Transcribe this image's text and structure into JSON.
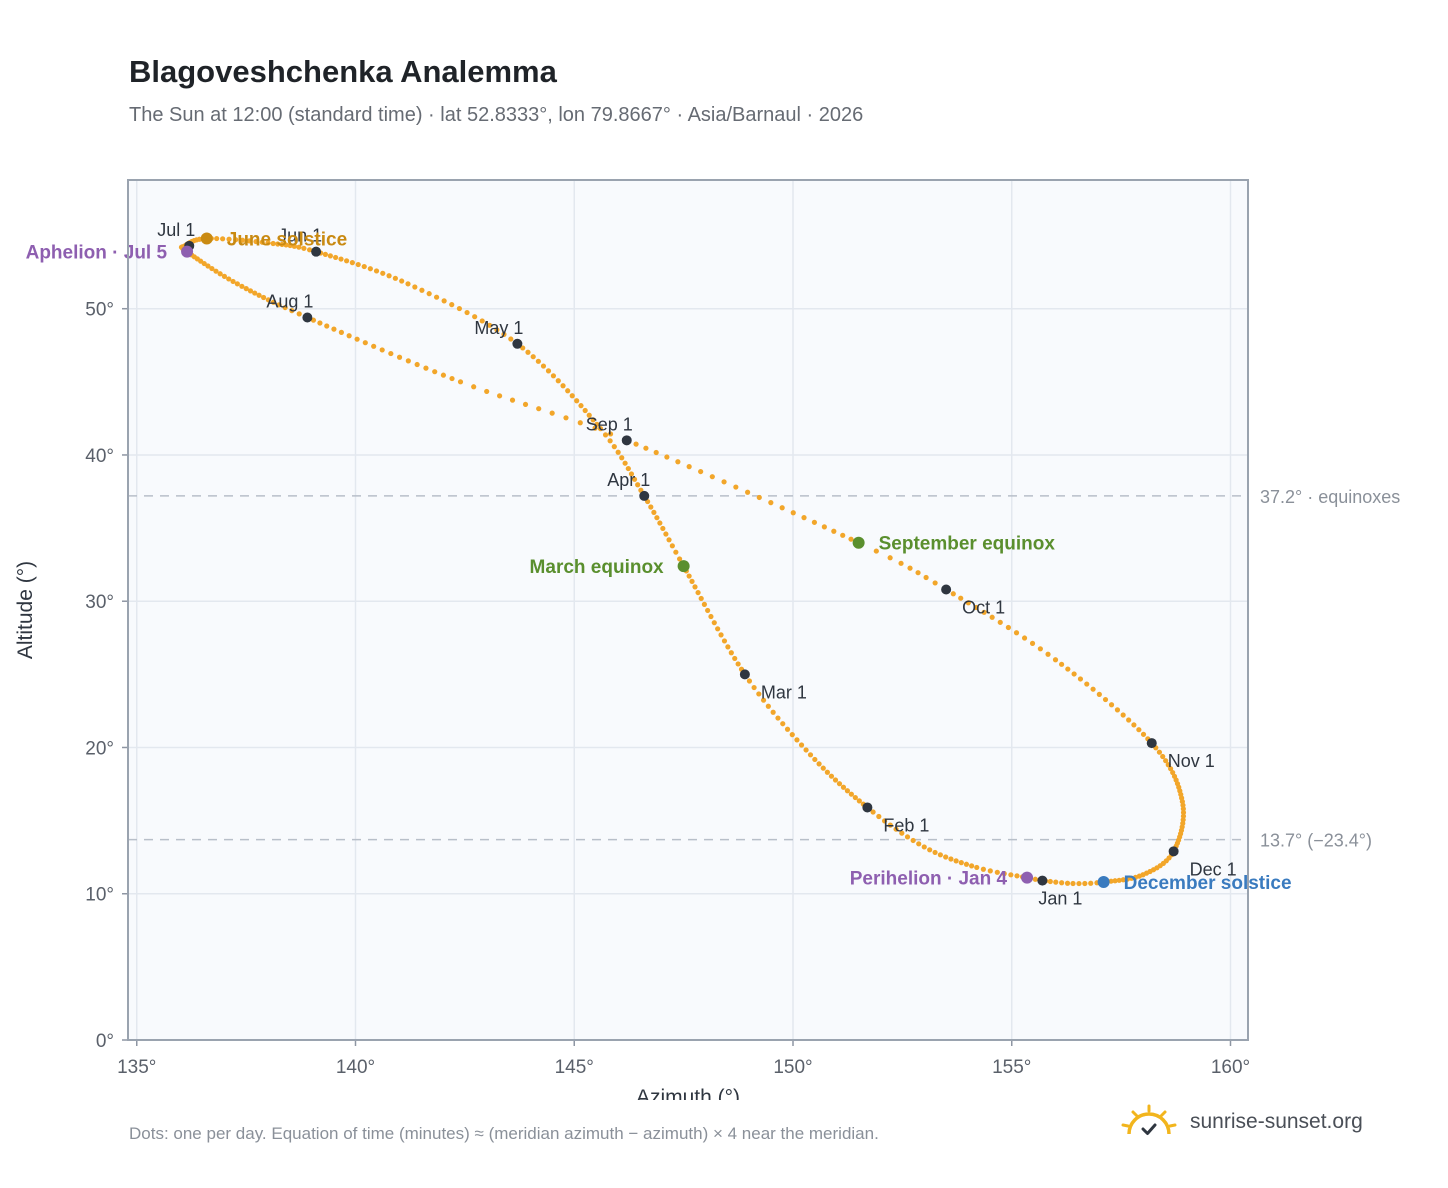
{
  "header": {
    "title": "Blagoveshchenka Analemma",
    "subtitle": "The Sun at 12:00 (standard time) · lat 52.8333°, lon 79.8667° · Asia/Barnaul · 2026"
  },
  "footer": {
    "note": "Dots: one per day. Equation of time (minutes) ≈ (meridian azimuth − azimuth) × 4 near the meridian.",
    "brand": "sunrise-sunset.org"
  },
  "colors": {
    "path": "#f2a62a",
    "month_marker": "#2f3640",
    "equinox": "#5a8f2e",
    "june_solstice": "#c98a12",
    "december_solstice": "#3a7bbf",
    "apsis": "#8e5fb0",
    "plot_bg": "#f8fafd",
    "grid": "#e3e8ef",
    "reference_line": "#b8bfc9"
  },
  "chart_data": {
    "type": "scatter",
    "xlabel": "Azimuth (°)",
    "ylabel": "Altitude (°)",
    "xlim": [
      134.8,
      160.4
    ],
    "ylim": [
      0,
      58.8
    ],
    "x_ticks": [
      135,
      140,
      145,
      150,
      155,
      160
    ],
    "x_tick_labels": [
      "135°",
      "140°",
      "145°",
      "150°",
      "155°",
      "160°"
    ],
    "y_ticks": [
      0,
      10,
      20,
      30,
      40,
      50
    ],
    "y_tick_labels": [
      "0°",
      "10°",
      "20°",
      "30°",
      "40°",
      "50°"
    ],
    "grid": true,
    "legend": "none",
    "series": [
      {
        "points": [
          {
            "x": 155.7,
            "y": 10.9,
            "doy": 1
          },
          {
            "x": 155.35,
            "y": 11.1,
            "doy": 4
          },
          {
            "x": 154.2,
            "y": 11.8,
            "doy": 12
          },
          {
            "x": 153.0,
            "y": 13.2,
            "doy": 22
          },
          {
            "x": 151.7,
            "y": 15.9,
            "doy": 32
          },
          {
            "x": 150.4,
            "y": 19.5,
            "doy": 46
          },
          {
            "x": 148.9,
            "y": 25.0,
            "doy": 60
          },
          {
            "x": 147.5,
            "y": 32.4,
            "doy": 79
          },
          {
            "x": 146.6,
            "y": 37.2,
            "doy": 91
          },
          {
            "x": 145.6,
            "y": 41.8,
            "doy": 103
          },
          {
            "x": 143.7,
            "y": 47.6,
            "doy": 121
          },
          {
            "x": 141.2,
            "y": 51.7,
            "doy": 136
          },
          {
            "x": 139.1,
            "y": 53.9,
            "doy": 152
          },
          {
            "x": 138.0,
            "y": 54.5,
            "doy": 162
          },
          {
            "x": 136.6,
            "y": 54.8,
            "doy": 172
          },
          {
            "x": 136.1,
            "y": 54.3,
            "doy": 182
          },
          {
            "x": 136.15,
            "y": 53.9,
            "doy": 186
          },
          {
            "x": 137.3,
            "y": 51.7,
            "doy": 200
          },
          {
            "x": 138.9,
            "y": 49.4,
            "doy": 213
          },
          {
            "x": 142.4,
            "y": 45.0,
            "doy": 232
          },
          {
            "x": 146.2,
            "y": 41.0,
            "doy": 244
          },
          {
            "x": 151.5,
            "y": 34.0,
            "doy": 266
          },
          {
            "x": 153.5,
            "y": 30.8,
            "doy": 274
          },
          {
            "x": 156.0,
            "y": 26.0,
            "doy": 288
          },
          {
            "x": 158.2,
            "y": 20.3,
            "doy": 305
          },
          {
            "x": 158.9,
            "y": 16.3,
            "doy": 320
          },
          {
            "x": 158.7,
            "y": 12.9,
            "doy": 335
          },
          {
            "x": 158.0,
            "y": 11.3,
            "doy": 345
          },
          {
            "x": 157.1,
            "y": 10.8,
            "doy": 355
          },
          {
            "x": 156.4,
            "y": 10.7,
            "doy": 360
          },
          {
            "x": 155.7,
            "y": 10.9,
            "doy": 366
          }
        ]
      }
    ],
    "month_markers": [
      {
        "label": "Jan 1",
        "x": 155.7,
        "y": 10.9,
        "pos": "below"
      },
      {
        "label": "Feb 1",
        "x": 151.7,
        "y": 15.9,
        "pos": "below-right"
      },
      {
        "label": "Mar 1",
        "x": 148.9,
        "y": 25.0,
        "pos": "below-right"
      },
      {
        "label": "Apr 1",
        "x": 146.6,
        "y": 37.2,
        "pos": "above-left"
      },
      {
        "label": "May 1",
        "x": 143.7,
        "y": 47.6,
        "pos": "above-left"
      },
      {
        "label": "Jun 1",
        "x": 139.1,
        "y": 53.9,
        "pos": "above-left"
      },
      {
        "label": "Jul 1",
        "x": 136.2,
        "y": 54.3,
        "pos": "above-left"
      },
      {
        "label": "Aug 1",
        "x": 138.9,
        "y": 49.4,
        "pos": "above-left"
      },
      {
        "label": "Sep 1",
        "x": 146.2,
        "y": 41.0,
        "pos": "above-left"
      },
      {
        "label": "Oct 1",
        "x": 153.5,
        "y": 30.8,
        "pos": "below-right"
      },
      {
        "label": "Nov 1",
        "x": 158.2,
        "y": 20.3,
        "pos": "below-right"
      },
      {
        "label": "Dec 1",
        "x": 158.7,
        "y": 12.9,
        "pos": "below-right"
      }
    ],
    "events": [
      {
        "label": "June solstice",
        "x": 136.6,
        "y": 54.8,
        "color_key": "june_solstice",
        "side": "right"
      },
      {
        "label": "Aphelion · Jul 5",
        "x": 136.15,
        "y": 53.9,
        "color_key": "apsis",
        "side": "left"
      },
      {
        "label": "March equinox",
        "x": 147.5,
        "y": 32.4,
        "color_key": "equinox",
        "side": "left"
      },
      {
        "label": "September equinox",
        "x": 151.5,
        "y": 34.0,
        "color_key": "equinox",
        "side": "right"
      },
      {
        "label": "Perihelion · Jan 4",
        "x": 155.35,
        "y": 11.1,
        "color_key": "apsis",
        "side": "left"
      },
      {
        "label": "December solstice",
        "x": 157.1,
        "y": 10.8,
        "color_key": "december_solstice",
        "side": "right"
      }
    ],
    "reference_lines": [
      {
        "y": 37.2,
        "label": "37.2° · equinoxes"
      },
      {
        "y": 13.7,
        "label": "13.7° (−23.4°)"
      }
    ]
  }
}
